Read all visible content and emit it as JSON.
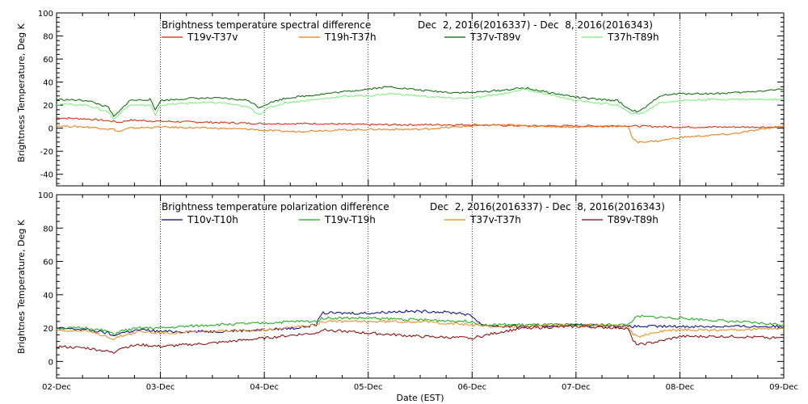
{
  "chart_data": [
    {
      "type": "line",
      "title": "Brightness temperature spectral difference",
      "date_range": "Dec  2, 2016(2016337) - Dec  8, 2016(2016343)",
      "ylabel": "Brightness Temperature, Deg K",
      "ylim": [
        -50,
        100
      ],
      "yticks": [
        -40,
        -20,
        0,
        20,
        40,
        60,
        80,
        100
      ],
      "xlim": [
        0,
        7
      ],
      "grid": "vertical dotted at day boundaries",
      "legend_position": "top",
      "series": [
        {
          "name": "T19v-T37v",
          "color": "#dd2200",
          "points": [
            [
              0,
              9
            ],
            [
              0.3,
              8
            ],
            [
              0.55,
              6
            ],
            [
              0.6,
              5
            ],
            [
              0.7,
              7
            ],
            [
              1.0,
              6
            ],
            [
              1.5,
              5
            ],
            [
              2.0,
              4
            ],
            [
              2.5,
              4
            ],
            [
              3.0,
              3
            ],
            [
              3.5,
              3
            ],
            [
              4.0,
              3
            ],
            [
              4.5,
              2
            ],
            [
              5.0,
              2
            ],
            [
              5.5,
              2
            ],
            [
              6.0,
              1
            ],
            [
              6.5,
              1
            ],
            [
              7.0,
              1
            ]
          ]
        },
        {
          "name": "T19h-T37h",
          "color": "#ee7711",
          "points": [
            [
              0,
              2
            ],
            [
              0.3,
              1
            ],
            [
              0.55,
              -1
            ],
            [
              0.6,
              -3
            ],
            [
              0.7,
              0
            ],
            [
              1.0,
              1
            ],
            [
              1.5,
              0
            ],
            [
              1.9,
              -1
            ],
            [
              2.0,
              -2
            ],
            [
              2.3,
              -3
            ],
            [
              2.5,
              -2
            ],
            [
              3.0,
              -1
            ],
            [
              3.5,
              -1
            ],
            [
              4.0,
              2
            ],
            [
              4.3,
              3
            ],
            [
              4.5,
              2
            ],
            [
              5.0,
              1
            ],
            [
              5.5,
              2
            ],
            [
              5.55,
              -10
            ],
            [
              5.6,
              -12
            ],
            [
              5.8,
              -11
            ],
            [
              6.0,
              -8
            ],
            [
              6.5,
              -5
            ],
            [
              7.0,
              2
            ]
          ]
        },
        {
          "name": "T37v-T89v",
          "color": "#006600",
          "points": [
            [
              0,
              25
            ],
            [
              0.3,
              24
            ],
            [
              0.5,
              18
            ],
            [
              0.55,
              10
            ],
            [
              0.6,
              14
            ],
            [
              0.7,
              24
            ],
            [
              0.9,
              25
            ],
            [
              0.95,
              16
            ],
            [
              1.0,
              24
            ],
            [
              1.3,
              26
            ],
            [
              1.6,
              26
            ],
            [
              1.85,
              24
            ],
            [
              1.95,
              18
            ],
            [
              2.05,
              22
            ],
            [
              2.2,
              26
            ],
            [
              2.5,
              29
            ],
            [
              2.8,
              32
            ],
            [
              3.0,
              34
            ],
            [
              3.2,
              36
            ],
            [
              3.5,
              33
            ],
            [
              3.8,
              31
            ],
            [
              4.0,
              31
            ],
            [
              4.3,
              33
            ],
            [
              4.5,
              35
            ],
            [
              4.8,
              30
            ],
            [
              5.0,
              27
            ],
            [
              5.2,
              25
            ],
            [
              5.4,
              24
            ],
            [
              5.5,
              17
            ],
            [
              5.6,
              14
            ],
            [
              5.7,
              20
            ],
            [
              5.8,
              28
            ],
            [
              6.0,
              30
            ],
            [
              6.3,
              30
            ],
            [
              6.6,
              31
            ],
            [
              7.0,
              34
            ]
          ]
        },
        {
          "name": "T37h-T89h",
          "color": "#77ee77",
          "points": [
            [
              0,
              21
            ],
            [
              0.3,
              20
            ],
            [
              0.5,
              14
            ],
            [
              0.55,
              8
            ],
            [
              0.6,
              12
            ],
            [
              0.7,
              20
            ],
            [
              0.9,
              20
            ],
            [
              0.95,
              12
            ],
            [
              1.0,
              20
            ],
            [
              1.3,
              22
            ],
            [
              1.6,
              22
            ],
            [
              1.85,
              18
            ],
            [
              1.95,
              12
            ],
            [
              2.05,
              18
            ],
            [
              2.2,
              22
            ],
            [
              2.5,
              25
            ],
            [
              2.8,
              28
            ],
            [
              3.0,
              28
            ],
            [
              3.2,
              30
            ],
            [
              3.5,
              28
            ],
            [
              3.8,
              26
            ],
            [
              4.0,
              26
            ],
            [
              4.3,
              30
            ],
            [
              4.5,
              34
            ],
            [
              4.8,
              28
            ],
            [
              5.0,
              24
            ],
            [
              5.2,
              22
            ],
            [
              5.4,
              20
            ],
            [
              5.5,
              14
            ],
            [
              5.6,
              12
            ],
            [
              5.7,
              16
            ],
            [
              5.8,
              22
            ],
            [
              6.0,
              24
            ],
            [
              6.3,
              25
            ],
            [
              6.6,
              25
            ],
            [
              7.0,
              25
            ]
          ]
        }
      ]
    },
    {
      "type": "line",
      "title": "Brightness temperature polarization difference",
      "date_range": "Dec  2, 2016(2016337) - Dec  8, 2016(2016343)",
      "ylabel": "Brightnes Temperature, Deg K",
      "ylim": [
        -10,
        100
      ],
      "yticks": [
        0,
        20,
        40,
        60,
        80,
        100
      ],
      "xlabel": "Date (EST)",
      "xlim": [
        0,
        7
      ],
      "xticks": [
        "02-Dec",
        "03-Dec",
        "04-Dec",
        "05-Dec",
        "06-Dec",
        "07-Dec",
        "08-Dec",
        "09-Dec"
      ],
      "grid": "vertical dotted at day boundaries",
      "legend_position": "top",
      "series": [
        {
          "name": "T10v-T10h",
          "color": "#000088",
          "points": [
            [
              0,
              20
            ],
            [
              0.3,
              19
            ],
            [
              0.5,
              17
            ],
            [
              0.55,
              15
            ],
            [
              0.6,
              17
            ],
            [
              0.8,
              19
            ],
            [
              1.0,
              18
            ],
            [
              1.5,
              18
            ],
            [
              2.0,
              19
            ],
            [
              2.3,
              20
            ],
            [
              2.5,
              22
            ],
            [
              2.55,
              29
            ],
            [
              3.0,
              29
            ],
            [
              3.3,
              30
            ],
            [
              3.6,
              30
            ],
            [
              3.9,
              29
            ],
            [
              4.0,
              27
            ],
            [
              4.1,
              22
            ],
            [
              4.3,
              21
            ],
            [
              4.6,
              21
            ],
            [
              5.0,
              22
            ],
            [
              5.5,
              21
            ],
            [
              6.0,
              21
            ],
            [
              6.5,
              21
            ],
            [
              7.0,
              21
            ]
          ]
        },
        {
          "name": "T19v-T19h",
          "color": "#11aa11",
          "points": [
            [
              0,
              20
            ],
            [
              0.3,
              20
            ],
            [
              0.5,
              18
            ],
            [
              0.55,
              16
            ],
            [
              0.6,
              18
            ],
            [
              0.8,
              20
            ],
            [
              1.0,
              20
            ],
            [
              1.5,
              22
            ],
            [
              2.0,
              23
            ],
            [
              2.3,
              24
            ],
            [
              2.5,
              24
            ],
            [
              2.55,
              26
            ],
            [
              3.0,
              26
            ],
            [
              3.5,
              25
            ],
            [
              4.0,
              24
            ],
            [
              4.1,
              22
            ],
            [
              4.5,
              22
            ],
            [
              5.0,
              22
            ],
            [
              5.5,
              22
            ],
            [
              5.55,
              25
            ],
            [
              5.6,
              27
            ],
            [
              6.0,
              26
            ],
            [
              6.5,
              24
            ],
            [
              7.0,
              22
            ]
          ]
        },
        {
          "name": "T37v-T37h",
          "color": "#ee8811",
          "points": [
            [
              0,
              19
            ],
            [
              0.3,
              18
            ],
            [
              0.5,
              15
            ],
            [
              0.55,
              13
            ],
            [
              0.6,
              15
            ],
            [
              0.8,
              18
            ],
            [
              1.0,
              17
            ],
            [
              1.5,
              18
            ],
            [
              2.0,
              19
            ],
            [
              2.3,
              21
            ],
            [
              2.5,
              22
            ],
            [
              2.55,
              24
            ],
            [
              3.0,
              24
            ],
            [
              3.5,
              24
            ],
            [
              4.0,
              22
            ],
            [
              4.1,
              21
            ],
            [
              4.5,
              21
            ],
            [
              5.0,
              22
            ],
            [
              5.5,
              21
            ],
            [
              5.55,
              16
            ],
            [
              5.6,
              15
            ],
            [
              5.8,
              18
            ],
            [
              6.0,
              19
            ],
            [
              6.5,
              19
            ],
            [
              7.0,
              20
            ]
          ]
        },
        {
          "name": "T89v-T89h",
          "color": "#880000",
          "points": [
            [
              0,
              9
            ],
            [
              0.3,
              8
            ],
            [
              0.5,
              6
            ],
            [
              0.55,
              5
            ],
            [
              0.6,
              8
            ],
            [
              0.8,
              10
            ],
            [
              1.0,
              9
            ],
            [
              1.5,
              11
            ],
            [
              2.0,
              14
            ],
            [
              2.3,
              16
            ],
            [
              2.5,
              17
            ],
            [
              2.55,
              19
            ],
            [
              3.0,
              17
            ],
            [
              3.5,
              15
            ],
            [
              4.0,
              14
            ],
            [
              4.3,
              18
            ],
            [
              4.5,
              20
            ],
            [
              5.0,
              21
            ],
            [
              5.5,
              20
            ],
            [
              5.55,
              12
            ],
            [
              5.6,
              10
            ],
            [
              5.8,
              12
            ],
            [
              6.0,
              15
            ],
            [
              6.5,
              15
            ],
            [
              7.0,
              14
            ]
          ]
        }
      ]
    }
  ]
}
